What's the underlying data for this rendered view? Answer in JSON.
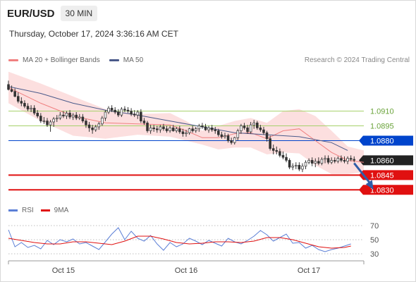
{
  "header": {
    "symbol": "EUR/USD",
    "timeframe": "30 MIN",
    "timestamp": "Thursday, October 17, 2024 3:36:16 AM CET"
  },
  "legend": {
    "ma_label": "MA 20 + Bollinger Bands",
    "ma50_label": "MA 50",
    "credit": "Research © 2024 Trading Central"
  },
  "rsi_legend": {
    "rsi_label": "RSI",
    "ma_label": "9MA"
  },
  "colors": {
    "bollinger_fill": "#fcd9d9",
    "ma20": "#f08080",
    "ma50": "#4a5a8a",
    "candle": "#333333",
    "level_resistance_strong": "#0044cc",
    "level_resistance_minor": "#a6d16a",
    "level_support": "#e01010",
    "pivot": "#222222",
    "rsi": "#5b7fd6",
    "rsi_ma": "#e01010",
    "arrow": "#2f5da8"
  },
  "chart_data": [
    {
      "type": "candlestick",
      "title": "EUR/USD",
      "x_labels": [
        "Oct 15",
        "Oct 16",
        "Oct 17"
      ],
      "x_label_positions": [
        17,
        55,
        93
      ],
      "x_range": [
        0,
        110
      ],
      "y_range": [
        1.0818,
        1.0957
      ],
      "levels": [
        {
          "value": 1.091,
          "label": "1.0910",
          "kind": "resistance_minor"
        },
        {
          "value": 1.0895,
          "label": "1.0895",
          "kind": "resistance_minor"
        },
        {
          "value": 1.088,
          "label": "1.0880",
          "kind": "resistance_strong"
        },
        {
          "value": 1.086,
          "label": "1.0860",
          "kind": "pivot"
        },
        {
          "value": 1.0845,
          "label": "1.0845",
          "kind": "support"
        },
        {
          "value": 1.083,
          "label": "1.0830",
          "kind": "support"
        }
      ],
      "series": [
        {
          "name": "MA 20 + Bollinger Bands",
          "kind": "bollinger",
          "x": [
            0,
            10,
            20,
            30,
            40,
            50,
            55,
            60,
            65,
            70,
            75,
            80,
            85,
            90,
            95,
            100,
            105,
            110
          ],
          "upper": [
            1.095,
            1.0938,
            1.0925,
            1.0912,
            1.0907,
            1.0908,
            1.09,
            1.089,
            1.0895,
            1.09,
            1.0903,
            1.0898,
            1.091,
            1.0912,
            1.0905,
            1.089,
            1.0874,
            1.087
          ],
          "mid": [
            1.0934,
            1.0918,
            1.0905,
            1.0898,
            1.0897,
            1.0896,
            1.089,
            1.0883,
            1.0883,
            1.0887,
            1.0888,
            1.0882,
            1.089,
            1.0892,
            1.088,
            1.0868,
            1.086,
            1.0858
          ],
          "lower": [
            1.0918,
            1.09,
            1.0885,
            1.0882,
            1.0886,
            1.0884,
            1.088,
            1.0876,
            1.0871,
            1.0873,
            1.0873,
            1.0866,
            1.0868,
            1.0867,
            1.0855,
            1.0846,
            1.0846,
            1.0848
          ]
        },
        {
          "name": "MA 50",
          "kind": "line",
          "x": [
            0,
            10,
            20,
            30,
            40,
            50,
            60,
            70,
            80,
            90,
            100,
            105
          ],
          "y": [
            1.0935,
            1.0928,
            1.0918,
            1.0911,
            1.0906,
            1.09,
            1.0894,
            1.0888,
            1.0886,
            1.0884,
            1.0878,
            1.087
          ]
        },
        {
          "name": "EUR/USD",
          "kind": "ohlc",
          "x": [
            0,
            1,
            2,
            3,
            4,
            5,
            6,
            7,
            8,
            9,
            10,
            11,
            12,
            13,
            14,
            15,
            16,
            17,
            18,
            19,
            20,
            21,
            22,
            23,
            24,
            25,
            26,
            27,
            28,
            29,
            30,
            31,
            32,
            33,
            34,
            35,
            36,
            37,
            38,
            39,
            40,
            41,
            42,
            43,
            44,
            45,
            46,
            47,
            48,
            49,
            50,
            51,
            52,
            53,
            54,
            55,
            56,
            57,
            58,
            59,
            60,
            61,
            62,
            63,
            64,
            65,
            66,
            67,
            68,
            69,
            70,
            71,
            72,
            73,
            74,
            75,
            76,
            77,
            78,
            79,
            80,
            81,
            82,
            83,
            84,
            85,
            86,
            87,
            88,
            89,
            90,
            91,
            92,
            93,
            94,
            95,
            96,
            97,
            98,
            99,
            100,
            101,
            102,
            103,
            104,
            105,
            106,
            107
          ],
          "open": [
            1.0937,
            1.0932,
            1.093,
            1.0925,
            1.092,
            1.0918,
            1.0915,
            1.0912,
            1.0913,
            1.0908,
            1.0905,
            1.09,
            1.09,
            1.0896,
            1.0899,
            1.0902,
            1.0903,
            1.0906,
            1.0905,
            1.0908,
            1.0904,
            1.0906,
            1.0903,
            1.0904,
            1.09,
            1.0896,
            1.0893,
            1.0891,
            1.0894,
            1.0897,
            1.0903,
            1.0909,
            1.0913,
            1.0911,
            1.0909,
            1.0906,
            1.0912,
            1.0911,
            1.091,
            1.0907,
            1.0906,
            1.0909,
            1.09,
            1.0898,
            1.089,
            1.0893,
            1.0892,
            1.0891,
            1.0894,
            1.0892,
            1.089,
            1.0893,
            1.089,
            1.0892,
            1.0889,
            1.0887,
            1.0888,
            1.0892,
            1.089,
            1.0892,
            1.0895,
            1.0894,
            1.0891,
            1.0893,
            1.0891,
            1.089,
            1.0886,
            1.0884,
            1.0885,
            1.088,
            1.0878,
            1.0883,
            1.089,
            1.0895,
            1.0893,
            1.0889,
            1.0896,
            1.0898,
            1.0893,
            1.0891,
            1.0888,
            1.0882,
            1.0872,
            1.087,
            1.0869,
            1.0865,
            1.0863,
            1.086,
            1.0853,
            1.0854,
            1.0855,
            1.0851,
            1.0854,
            1.0858,
            1.086,
            1.0857,
            1.0859,
            1.0857,
            1.0861,
            1.0862,
            1.0858,
            1.086,
            1.0859,
            1.0862,
            1.086,
            1.0859,
            1.0862,
            1.0861
          ],
          "high": [
            1.0941,
            1.0936,
            1.0933,
            1.0929,
            1.0924,
            1.0921,
            1.0918,
            1.0916,
            1.0916,
            1.0911,
            1.0908,
            1.0904,
            1.0903,
            1.0901,
            1.0904,
            1.0906,
            1.0909,
            1.091,
            1.091,
            1.0911,
            1.0908,
            1.0909,
            1.0907,
            1.0907,
            1.0902,
            1.0899,
            1.0896,
            1.0896,
            1.0899,
            1.0905,
            1.0911,
            1.0915,
            1.0916,
            1.0914,
            1.0912,
            1.0914,
            1.0915,
            1.0914,
            1.0913,
            1.0911,
            1.0911,
            1.0912,
            1.0903,
            1.09,
            1.0896,
            1.0896,
            1.0895,
            1.0896,
            1.0897,
            1.0895,
            1.0895,
            1.0896,
            1.0894,
            1.0895,
            1.0892,
            1.0891,
            1.0893,
            1.0895,
            1.0894,
            1.0897,
            1.0898,
            1.0897,
            1.0895,
            1.0896,
            1.0894,
            1.0892,
            1.0889,
            1.0888,
            1.0887,
            1.0883,
            1.0884,
            1.0892,
            1.0897,
            1.0898,
            1.0896,
            1.0899,
            1.0901,
            1.09,
            1.0896,
            1.0894,
            1.089,
            1.0885,
            1.0876,
            1.0874,
            1.0872,
            1.0869,
            1.0867,
            1.0862,
            1.0857,
            1.0858,
            1.0858,
            1.0857,
            1.086,
            1.0862,
            1.0863,
            1.0862,
            1.0863,
            1.0863,
            1.0865,
            1.0865,
            1.0863,
            1.0863,
            1.0864,
            1.0865,
            1.0864,
            1.0864,
            1.0865,
            1.0864
          ],
          "low": [
            1.0931,
            1.0929,
            1.0924,
            1.0918,
            1.0915,
            1.0913,
            1.091,
            1.0909,
            1.0906,
            1.0903,
            1.0898,
            1.0897,
            1.0894,
            1.0889,
            1.0894,
            1.0899,
            1.0901,
            1.0903,
            1.0902,
            1.0902,
            1.0901,
            1.0901,
            1.0901,
            1.0898,
            1.0893,
            1.0889,
            1.0887,
            1.0889,
            1.0891,
            1.0895,
            1.09,
            1.0907,
            1.0909,
            1.0907,
            1.0904,
            1.0904,
            1.0909,
            1.0908,
            1.0905,
            1.0904,
            1.0902,
            1.0898,
            1.0896,
            1.0888,
            1.0887,
            1.0889,
            1.0888,
            1.0888,
            1.089,
            1.0888,
            1.0888,
            1.0889,
            1.0888,
            1.0887,
            1.0884,
            1.0884,
            1.0886,
            1.0888,
            1.0888,
            1.0889,
            1.0892,
            1.089,
            1.0888,
            1.0889,
            1.0887,
            1.0884,
            1.0882,
            1.0882,
            1.0878,
            1.0876,
            1.0876,
            1.088,
            1.0887,
            1.0891,
            1.0887,
            1.0887,
            1.0892,
            1.0891,
            1.0889,
            1.0886,
            1.0879,
            1.087,
            1.0866,
            1.0866,
            1.0863,
            1.0861,
            1.0858,
            1.0851,
            1.085,
            1.0851,
            1.0849,
            1.0848,
            1.0851,
            1.0856,
            1.0854,
            1.0853,
            1.0855,
            1.0855,
            1.0857,
            1.0856,
            1.0856,
            1.0857,
            1.0857,
            1.0858,
            1.0857,
            1.0856,
            1.0859,
            1.0858
          ],
          "close": [
            1.0932,
            1.093,
            1.0925,
            1.092,
            1.0918,
            1.0915,
            1.0912,
            1.0913,
            1.0908,
            1.0905,
            1.09,
            1.09,
            1.0896,
            1.0899,
            1.0902,
            1.0903,
            1.0906,
            1.0905,
            1.0908,
            1.0904,
            1.0906,
            1.0903,
            1.0904,
            1.09,
            1.0896,
            1.0893,
            1.0891,
            1.0894,
            1.0897,
            1.0903,
            1.0909,
            1.0913,
            1.0911,
            1.0909,
            1.0906,
            1.0912,
            1.0911,
            1.091,
            1.0907,
            1.0906,
            1.0909,
            1.09,
            1.0898,
            1.089,
            1.0893,
            1.0892,
            1.0891,
            1.0894,
            1.0892,
            1.089,
            1.0893,
            1.089,
            1.0892,
            1.0889,
            1.0887,
            1.0888,
            1.0892,
            1.089,
            1.0892,
            1.0895,
            1.0894,
            1.0891,
            1.0893,
            1.0891,
            1.089,
            1.0886,
            1.0884,
            1.0885,
            1.088,
            1.0878,
            1.0883,
            1.089,
            1.0895,
            1.0893,
            1.0889,
            1.0896,
            1.0898,
            1.0893,
            1.0891,
            1.0888,
            1.0882,
            1.0872,
            1.087,
            1.0869,
            1.0865,
            1.0863,
            1.086,
            1.0853,
            1.0854,
            1.0855,
            1.0851,
            1.0854,
            1.0858,
            1.086,
            1.0857,
            1.0859,
            1.0857,
            1.0861,
            1.0862,
            1.0858,
            1.086,
            1.0859,
            1.0862,
            1.086,
            1.0859,
            1.0862,
            1.0861,
            1.086
          ]
        }
      ],
      "projection": {
        "from": [
          107,
          1.086
        ],
        "to": [
          113,
          1.083
        ]
      }
    },
    {
      "type": "line",
      "title": "RSI",
      "y_range": [
        22,
        76
      ],
      "y_ticks": [
        30,
        50,
        70
      ],
      "x_range": [
        0,
        110
      ],
      "series": [
        {
          "name": "RSI",
          "x": [
            0,
            2,
            4,
            6,
            8,
            10,
            12,
            14,
            16,
            18,
            20,
            22,
            24,
            26,
            28,
            30,
            32,
            34,
            36,
            38,
            40,
            42,
            44,
            46,
            48,
            50,
            52,
            54,
            56,
            58,
            60,
            62,
            64,
            66,
            68,
            70,
            72,
            74,
            76,
            78,
            80,
            82,
            84,
            86,
            88,
            90,
            92,
            94,
            96,
            98,
            100,
            102,
            104,
            106
          ],
          "y": [
            64,
            40,
            46,
            39,
            42,
            37,
            49,
            43,
            50,
            47,
            51,
            44,
            46,
            41,
            36,
            47,
            58,
            67,
            50,
            62,
            52,
            48,
            56,
            44,
            35,
            46,
            40,
            44,
            52,
            48,
            43,
            49,
            45,
            41,
            52,
            47,
            44,
            49,
            55,
            63,
            57,
            48,
            53,
            58,
            45,
            46,
            38,
            42,
            36,
            33,
            36,
            38,
            41,
            44
          ]
        },
        {
          "name": "9MA",
          "x": [
            0,
            4,
            8,
            12,
            16,
            20,
            24,
            28,
            32,
            36,
            40,
            44,
            48,
            52,
            56,
            60,
            64,
            68,
            72,
            76,
            80,
            84,
            88,
            92,
            96,
            100,
            104,
            106
          ],
          "y": [
            52,
            49,
            46,
            44,
            44,
            47,
            47,
            45,
            43,
            48,
            55,
            55,
            51,
            46,
            44,
            45,
            47,
            47,
            46,
            48,
            53,
            53,
            50,
            45,
            40,
            38,
            39,
            41
          ]
        }
      ]
    }
  ]
}
